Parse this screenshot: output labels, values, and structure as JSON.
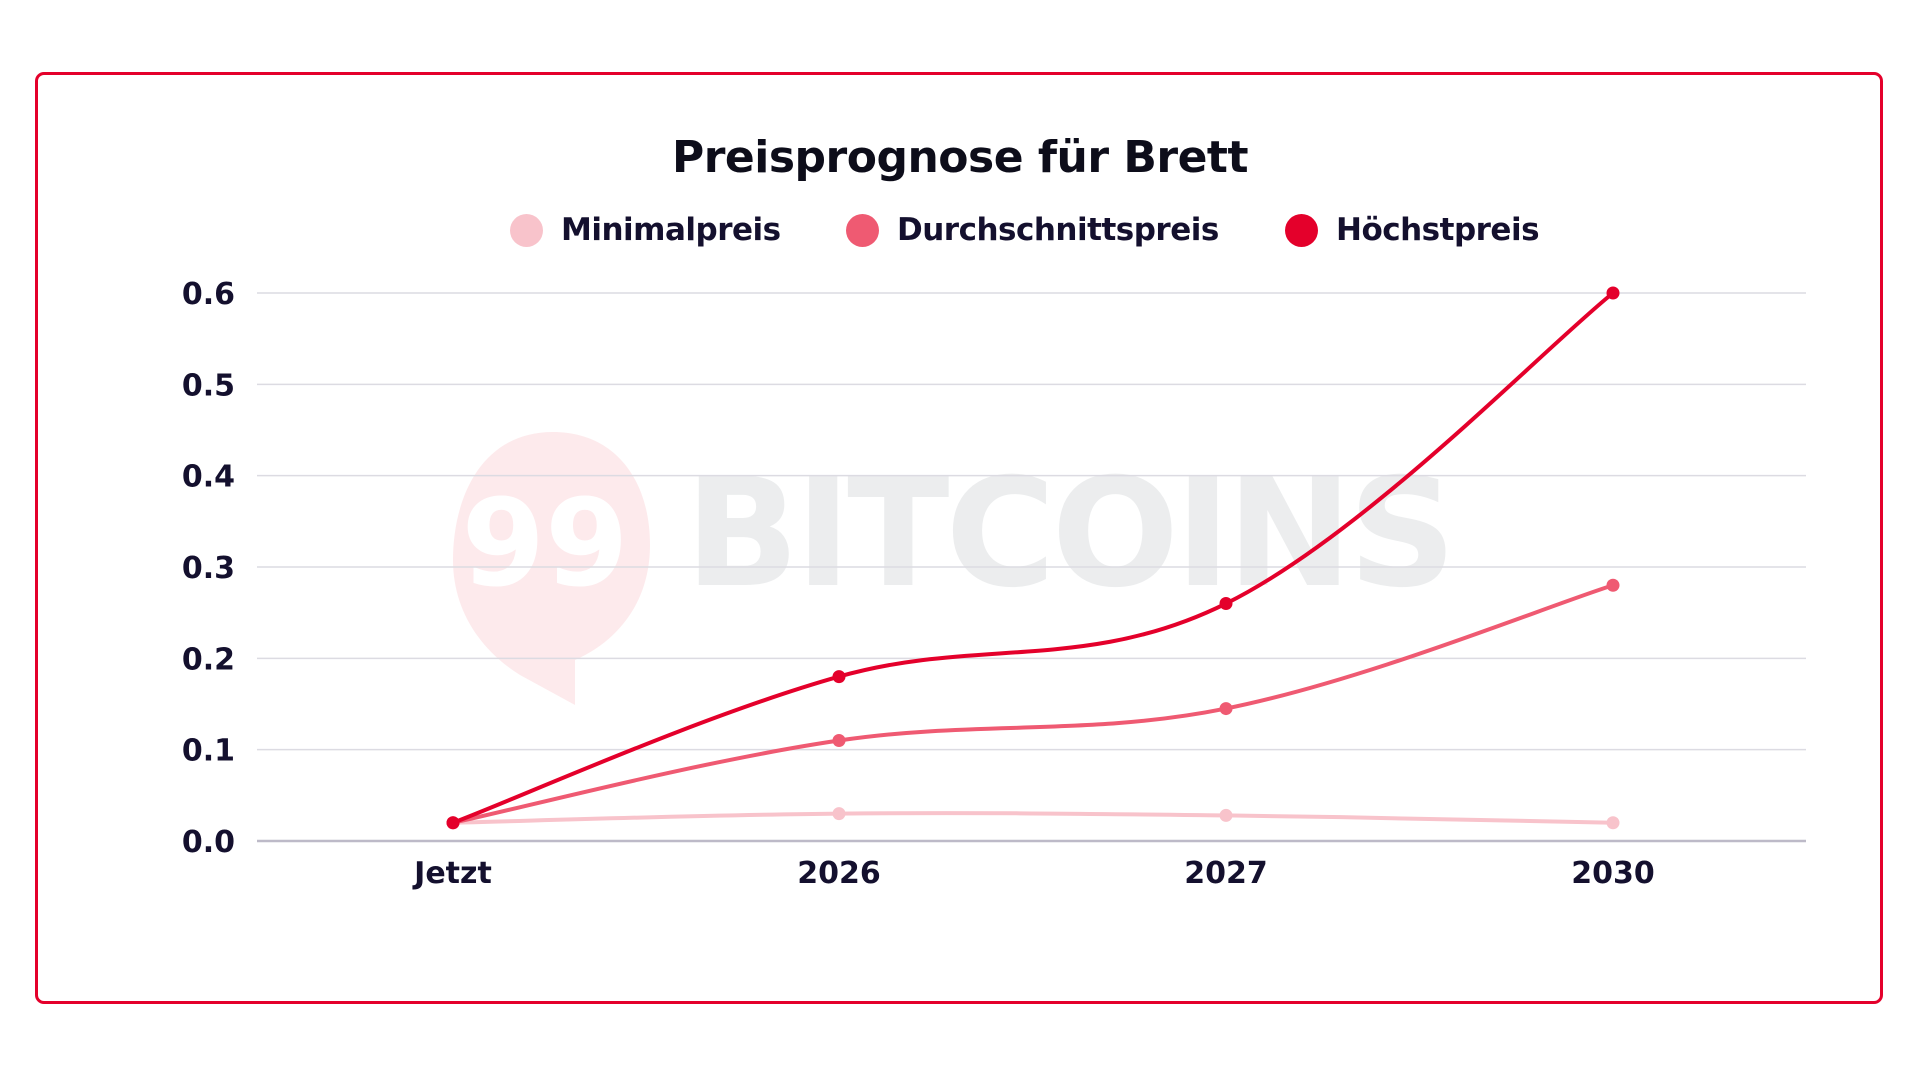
{
  "chart": {
    "title": "Preisprognose für Brett",
    "watermark": "BITCOINS",
    "watermark_logo": "99",
    "legend": [
      {
        "label": "Minimalpreis",
        "color": "#f8c3cb"
      },
      {
        "label": "Durchschnittspreis",
        "color": "#ef5a72"
      },
      {
        "label": "Höchstpreis",
        "color": "#e4002b"
      }
    ],
    "y_ticks": [
      "0.0",
      "0.1",
      "0.2",
      "0.3",
      "0.4",
      "0.5",
      "0.6"
    ],
    "x_ticks": [
      "Jetzt",
      "2026",
      "2027",
      "2030"
    ],
    "border_color": "#e4002b"
  },
  "chart_data": {
    "type": "line",
    "title": "Preisprognose für Brett",
    "xlabel": "",
    "ylabel": "",
    "categories": [
      "Jetzt",
      "2026",
      "2027",
      "2030"
    ],
    "series": [
      {
        "name": "Minimalpreis",
        "color": "#f8c3cb",
        "values": [
          0.02,
          0.03,
          0.028,
          0.02
        ]
      },
      {
        "name": "Durchschnittspreis",
        "color": "#ef5a72",
        "values": [
          0.02,
          0.11,
          0.145,
          0.28
        ]
      },
      {
        "name": "Höchstpreis",
        "color": "#e4002b",
        "values": [
          0.02,
          0.18,
          0.26,
          0.6
        ]
      }
    ],
    "ylim": [
      0,
      0.6
    ],
    "y_tick_step": 0.1,
    "grid": true,
    "legend_position": "top",
    "curve": "smooth"
  }
}
